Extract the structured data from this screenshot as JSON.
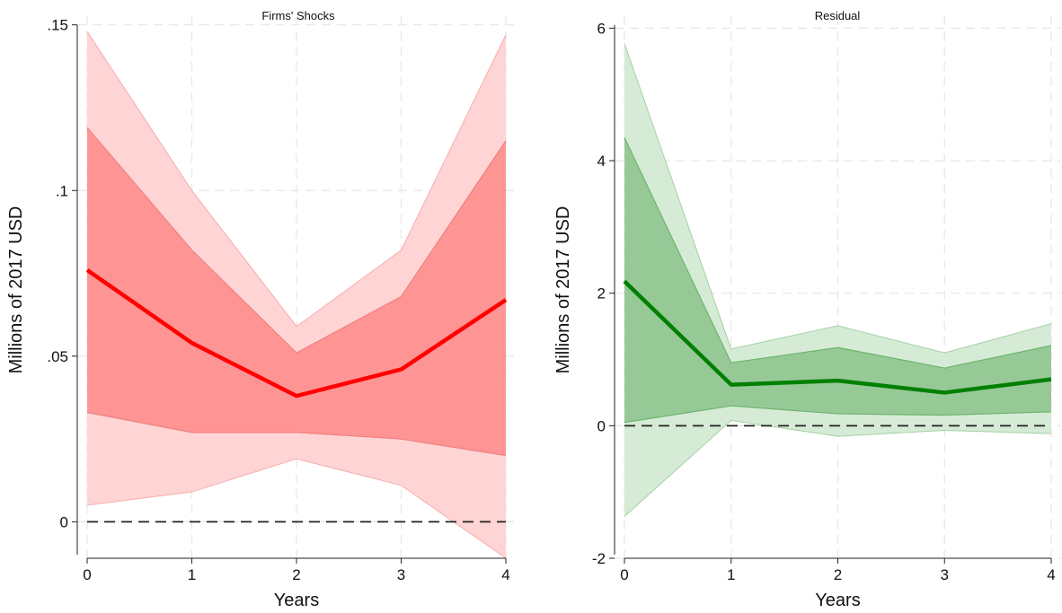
{
  "chart_data": [
    {
      "type": "line",
      "title": "Firms' Shocks",
      "xlabel": "Years",
      "ylabel": "Millions of 2017 USD",
      "x": [
        0,
        1,
        2,
        3,
        4
      ],
      "x_ticks": [
        0,
        1,
        2,
        3,
        4
      ],
      "x_tick_labels": [
        "0",
        "1",
        "2",
        "3",
        "4"
      ],
      "xlim": [
        0,
        4
      ],
      "ylim": [
        -0.011,
        0.151
      ],
      "y_ticks": [
        0,
        0.05,
        0.1,
        0.15
      ],
      "y_tick_labels": [
        "0",
        ".05",
        ".1",
        ".15"
      ],
      "grid": true,
      "reference_line_y": 0,
      "colors": {
        "line": "#ff0000",
        "inner_band": "#ff9494",
        "outer_band": "#ffd4d4",
        "band_edge": "#f08080"
      },
      "series": [
        {
          "values": [
            0.076,
            0.054,
            0.038,
            0.046,
            0.067
          ]
        }
      ],
      "bands": {
        "inner": {
          "lower": [
            0.033,
            0.027,
            0.027,
            0.025,
            0.02
          ],
          "upper": [
            0.119,
            0.082,
            0.051,
            0.068,
            0.115
          ]
        },
        "outer": {
          "lower": [
            0.005,
            0.009,
            0.019,
            0.011,
            -0.011
          ],
          "upper": [
            0.148,
            0.1,
            0.059,
            0.082,
            0.147
          ]
        }
      }
    },
    {
      "type": "line",
      "title": "Residual",
      "xlabel": "Years",
      "ylabel": "Millions of 2017 USD",
      "x": [
        0,
        1,
        2,
        3,
        4
      ],
      "x_ticks": [
        0,
        1,
        2,
        3,
        4
      ],
      "x_tick_labels": [
        "0",
        "1",
        "2",
        "3",
        "4"
      ],
      "xlim": [
        0,
        4
      ],
      "ylim": [
        -2.0,
        6.1
      ],
      "y_ticks": [
        -2,
        0,
        2,
        4,
        6
      ],
      "y_tick_labels": [
        "-2",
        "0",
        "2",
        "4",
        "6"
      ],
      "grid": true,
      "reference_line_y": 0,
      "colors": {
        "line": "#008000",
        "inner_band": "#97c997",
        "outer_band": "#d6ebd6",
        "band_edge": "#6db56d"
      },
      "series": [
        {
          "values": [
            2.18,
            0.62,
            0.68,
            0.5,
            0.7
          ]
        }
      ],
      "bands": {
        "inner": {
          "lower": [
            0.05,
            0.3,
            0.18,
            0.16,
            0.21
          ],
          "upper": [
            4.35,
            0.95,
            1.18,
            0.87,
            1.21
          ]
        },
        "outer": {
          "lower": [
            -1.37,
            0.08,
            -0.16,
            -0.07,
            -0.12
          ],
          "upper": [
            5.77,
            1.16,
            1.51,
            1.1,
            1.54
          ]
        }
      }
    }
  ]
}
